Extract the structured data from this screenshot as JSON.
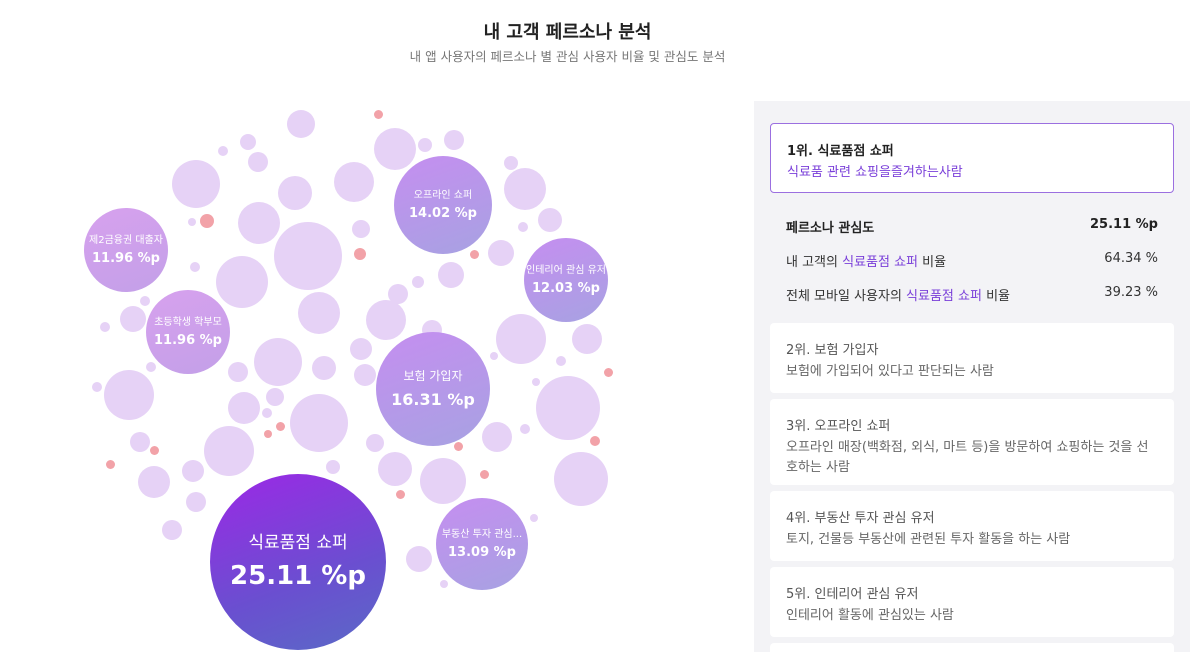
{
  "header": {
    "title": "내 고객 페르소나 분석",
    "subtitle": "내 앱 사용자의 페르소나 별 관심 사용자 비율 및 관심도 분석"
  },
  "bubbles": {
    "grocery": {
      "name": "식료품점 쇼퍼",
      "value": "25.11 %p"
    },
    "insurance": {
      "name": "보험 가입자",
      "value": "16.31 %p"
    },
    "offline": {
      "name": "오프라인 쇼퍼",
      "value": "14.02 %p"
    },
    "realestate": {
      "name": "부동산 투자 관심...",
      "value": "13.09 %p"
    },
    "interior": {
      "name": "인테리어 관심 유저",
      "value": "12.03 %p"
    },
    "loan": {
      "name": "제2금융권 대출자",
      "value": "11.96 %p"
    },
    "parent": {
      "name": "초등학생 학부모",
      "value": "11.96 %p"
    }
  },
  "panel": {
    "top": {
      "title": "1위. 식료품점 쇼퍼",
      "desc": "식료품 관련 쇼핑을즐겨하는사람"
    },
    "stats": {
      "interest_label": "페르소나 관심도",
      "interest_value": "25.11 %p",
      "row1_prefix": "내 고객의 ",
      "row1_highlight": "식료품점 쇼퍼",
      "row1_suffix": " 비율",
      "row1_value": "64.34 %",
      "row2_prefix": "전체 모바일 사용자의 ",
      "row2_highlight": "식료품점 쇼퍼",
      "row2_suffix": " 비율",
      "row2_value": "39.23 %"
    },
    "cards": [
      {
        "title": "2위. 보험 가입자",
        "desc": "보험에 가입되어 있다고 판단되는 사람"
      },
      {
        "title": "3위. 오프라인 쇼퍼",
        "desc": "오프라인 매장(백화점, 외식, 마트 등)을 방문하여 쇼핑하는 것을 선호하는 사람"
      },
      {
        "title": "4위. 부동산 투자 관심 유저",
        "desc": "토지, 건물등 부동산에 관련된 투자 활동을 하는 사람"
      },
      {
        "title": "5위. 인테리어 관심 유저",
        "desc": "인테리어 활동에 관심있는 사람"
      }
    ]
  }
}
